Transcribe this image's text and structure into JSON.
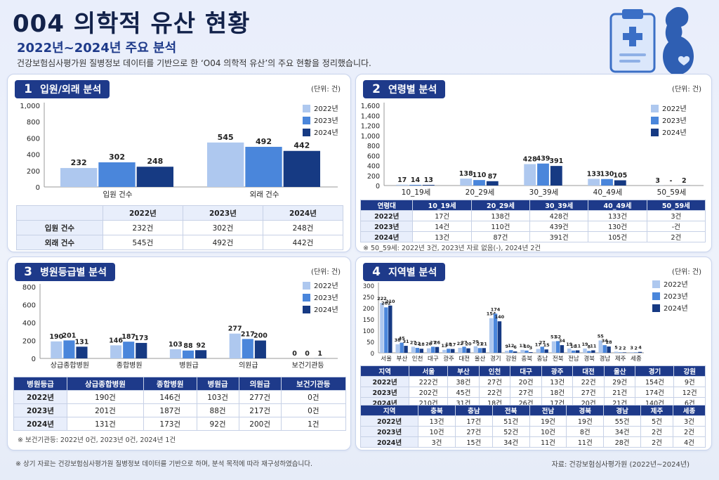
{
  "header": {
    "title": "004 의학적 유산 현황",
    "subtitle": "2022년~2024년 주요 분석",
    "description": "건강보험심사평가원 질병정보 데이터를 기반으로 한 ‘O04 의학적 유산’의 주요 현황을 정리했습니다."
  },
  "colors": {
    "y2022": "#aec8ef",
    "y2023": "#4a86db",
    "y2024": "#163a83",
    "navy": "#1e3a8a"
  },
  "legend": [
    "2022년",
    "2023년",
    "2024년"
  ],
  "unit": "(단위: 건)",
  "panel1": {
    "num": "1",
    "title": "입원/외래 분석",
    "table": {
      "headers": [
        "",
        "2022년",
        "2023년",
        "2024년"
      ],
      "rows": [
        [
          "입원 건수",
          "232건",
          "302건",
          "248건"
        ],
        [
          "외래 건수",
          "545건",
          "492건",
          "442건"
        ]
      ]
    }
  },
  "panel2": {
    "num": "2",
    "title": "연령별 분석",
    "table": {
      "headers": [
        "연령대",
        "10_19세",
        "20_29세",
        "30_39세",
        "40_49세",
        "50_59세"
      ],
      "rows": [
        [
          "2022년",
          "17건",
          "138건",
          "428건",
          "133건",
          "3건"
        ],
        [
          "2023년",
          "14건",
          "110건",
          "439건",
          "130건",
          "-건"
        ],
        [
          "2024년",
          "13건",
          "87건",
          "391건",
          "105건",
          "2건"
        ]
      ]
    },
    "note": "※ 50_59세: 2022년 3건, 2023년 자료 없음(-), 2024년 2건"
  },
  "panel3": {
    "num": "3",
    "title": "병원등급별 분석",
    "table": {
      "headers": [
        "병원등급",
        "상급종합병원",
        "종합병원",
        "병원급",
        "의원급",
        "보건기관등"
      ],
      "rows": [
        [
          "2022년",
          "190건",
          "146건",
          "103건",
          "277건",
          "0건"
        ],
        [
          "2023년",
          "201건",
          "187건",
          "88건",
          "217건",
          "0건"
        ],
        [
          "2024년",
          "131건",
          "173건",
          "92건",
          "200건",
          "1건"
        ]
      ]
    },
    "note": "※ 보건기관등: 2022년 0건, 2023년 0건, 2024년 1건"
  },
  "panel4": {
    "num": "4",
    "title": "지역별 분석",
    "table1": {
      "headers": [
        "지역",
        "서울",
        "부산",
        "인천",
        "대구",
        "광주",
        "대전",
        "울산",
        "경기",
        "강원"
      ],
      "rows": [
        [
          "2022년",
          "222건",
          "38건",
          "27건",
          "20건",
          "13건",
          "22건",
          "29건",
          "154건",
          "9건"
        ],
        [
          "2023년",
          "202건",
          "45건",
          "22건",
          "27건",
          "18건",
          "27건",
          "21건",
          "174건",
          "12건"
        ],
        [
          "2024년",
          "210건",
          "31건",
          "18건",
          "26건",
          "17건",
          "20건",
          "21건",
          "140건",
          "6건"
        ]
      ]
    },
    "table2": {
      "headers": [
        "지역",
        "충북",
        "충남",
        "전북",
        "전남",
        "경북",
        "경남",
        "제주",
        "세종"
      ],
      "rows": [
        [
          "2022년",
          "13건",
          "17건",
          "51건",
          "19건",
          "19건",
          "55건",
          "5건",
          "3건"
        ],
        [
          "2023년",
          "10건",
          "27건",
          "52건",
          "10건",
          "8건",
          "34건",
          "2건",
          "2건"
        ],
        [
          "2024년",
          "3건",
          "15건",
          "34건",
          "11건",
          "11건",
          "28건",
          "2건",
          "4건"
        ]
      ]
    }
  },
  "footer": {
    "left": "※ 상기 자료는 건강보험심사평가원 질병정보 데이터를 기반으로 하며, 분석 목적에 따라 재구성하였습니다.",
    "right": "자료: 건강보험심사평가원 (2022년~2024년)"
  },
  "chart_data": [
    {
      "type": "bar",
      "categories": [
        "입원 건수",
        "외래 건수"
      ],
      "series": [
        {
          "name": "2022년",
          "values": [
            232,
            545
          ],
          "labels": [
            "232",
            "545"
          ]
        },
        {
          "name": "2023년",
          "values": [
            302,
            492
          ],
          "labels": [
            "302",
            "492"
          ]
        },
        {
          "name": "2024년",
          "values": [
            248,
            442
          ],
          "labels": [
            "248",
            "442"
          ]
        }
      ],
      "ylim": [
        0,
        1000
      ],
      "yticks": [
        0,
        200,
        400,
        600,
        800,
        1000
      ],
      "ytick_labels": [
        "0",
        "200",
        "400",
        "600",
        "800",
        "1,000"
      ],
      "legend": "top-right",
      "grid": false
    },
    {
      "type": "bar",
      "categories": [
        "10_19세",
        "20_29세",
        "30_39세",
        "40_49세",
        "50_59세"
      ],
      "series": [
        {
          "name": "2022년",
          "values": [
            17,
            138,
            428,
            133,
            3
          ],
          "labels": [
            "17",
            "138",
            "428",
            "133",
            "3"
          ]
        },
        {
          "name": "2023년",
          "values": [
            14,
            110,
            439,
            130,
            0
          ],
          "labels": [
            "14",
            "110",
            "439",
            "130",
            "-"
          ]
        },
        {
          "name": "2024년",
          "values": [
            13,
            87,
            391,
            105,
            2
          ],
          "labels": [
            "13",
            "87",
            "391",
            "105",
            "2"
          ]
        }
      ],
      "ylim": [
        0,
        1600
      ],
      "yticks": [
        0,
        200,
        400,
        600,
        800,
        1000,
        1200,
        1400,
        1600
      ],
      "ytick_labels": [
        "0",
        "200",
        "400",
        "600",
        "800",
        "1,000",
        "1,200",
        "1,400",
        "1,600"
      ],
      "legend": "top-right",
      "grid": false
    },
    {
      "type": "bar",
      "categories": [
        "상급종합병원",
        "종합병원",
        "병원급",
        "의원급",
        "보건기관등"
      ],
      "series": [
        {
          "name": "2022년",
          "values": [
            190,
            146,
            103,
            277,
            0
          ],
          "labels": [
            "190",
            "146",
            "103",
            "277",
            "0"
          ]
        },
        {
          "name": "2023년",
          "values": [
            201,
            187,
            88,
            217,
            0
          ],
          "labels": [
            "201",
            "187",
            "88",
            "217",
            "0"
          ]
        },
        {
          "name": "2024년",
          "values": [
            131,
            173,
            92,
            200,
            1
          ],
          "labels": [
            "131",
            "173",
            "92",
            "200",
            "1"
          ]
        }
      ],
      "ylim": [
        0,
        800
      ],
      "yticks": [
        0,
        200,
        400,
        600,
        800
      ],
      "ytick_labels": [
        "0",
        "200",
        "400",
        "600",
        "800"
      ],
      "legend": "top-right",
      "grid": false
    },
    {
      "type": "bar",
      "categories": [
        "서울",
        "부산",
        "인천",
        "대구",
        "광주",
        "대전",
        "울산",
        "경기",
        "강원",
        "충북",
        "충남",
        "전북",
        "전남",
        "경북",
        "경남",
        "제주",
        "세종"
      ],
      "series": [
        {
          "name": "2022년",
          "values": [
            222,
            38,
            27,
            20,
            13,
            22,
            29,
            154,
            9,
            13,
            17,
            51,
            19,
            19,
            55,
            5,
            3
          ],
          "labels": [
            "222",
            "38",
            "27",
            "20",
            "13",
            "22",
            "29",
            "154",
            "9",
            "13",
            "17",
            "51",
            "19",
            "19",
            "55",
            "5",
            "3"
          ]
        },
        {
          "name": "2023년",
          "values": [
            202,
            45,
            22,
            27,
            18,
            27,
            21,
            174,
            12,
            10,
            27,
            52,
            10,
            8,
            34,
            2,
            2
          ],
          "labels": [
            "202",
            "45",
            "22",
            "27",
            "18",
            "27",
            "21",
            "174",
            "12",
            "10",
            "27",
            "52",
            "10",
            "8",
            "34",
            "2",
            "2"
          ]
        },
        {
          "name": "2024년",
          "values": [
            210,
            31,
            18,
            26,
            17,
            20,
            21,
            140,
            6,
            3,
            15,
            34,
            11,
            11,
            28,
            2,
            4
          ],
          "labels": [
            "210",
            "31",
            "18",
            "26",
            "17",
            "20",
            "21",
            "140",
            "6",
            "3",
            "15",
            "34",
            "11",
            "11",
            "28",
            "2",
            "4"
          ]
        }
      ],
      "ylim": [
        0,
        300
      ],
      "yticks": [
        0,
        50,
        100,
        150,
        200,
        250,
        300
      ],
      "ytick_labels": [
        "0",
        "50",
        "100",
        "150",
        "200",
        "250",
        "300"
      ],
      "legend": "top-right",
      "grid": false
    }
  ]
}
